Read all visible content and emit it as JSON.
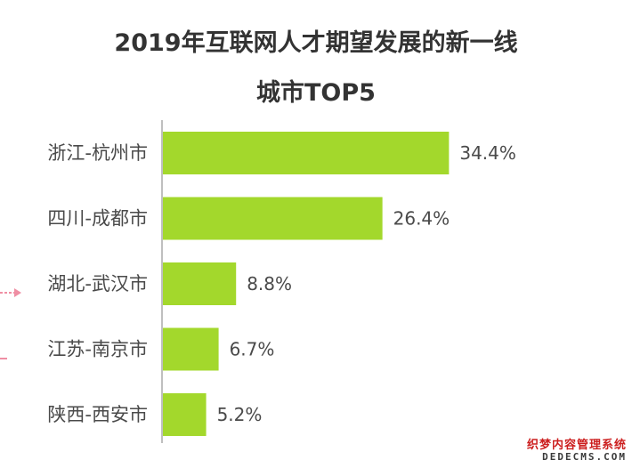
{
  "chart_data": {
    "type": "bar",
    "orientation": "horizontal",
    "title_line1": "2019年互联网人才期望发展的新一线",
    "title_line2": "城市TOP5",
    "categories": [
      "浙江-杭州市",
      "四川-成都市",
      "湖北-武汉市",
      "江苏-南京市",
      "陕西-西安市"
    ],
    "values": [
      34.4,
      26.4,
      8.8,
      6.7,
      5.2
    ],
    "value_labels": [
      "34.4%",
      "26.4%",
      "8.8%",
      "6.7%",
      "5.2%"
    ],
    "xlim": [
      0,
      38
    ],
    "bar_color": "#a3d82c",
    "grid": false,
    "legend": "none"
  },
  "watermark": {
    "cn": "织梦内容管理系统",
    "en": "DEDECMS.COM"
  },
  "colors": {
    "title": "#333333",
    "text": "#4a4a4a",
    "axis": "#aaaaaa",
    "edge_mark": "#ef8fa4"
  }
}
